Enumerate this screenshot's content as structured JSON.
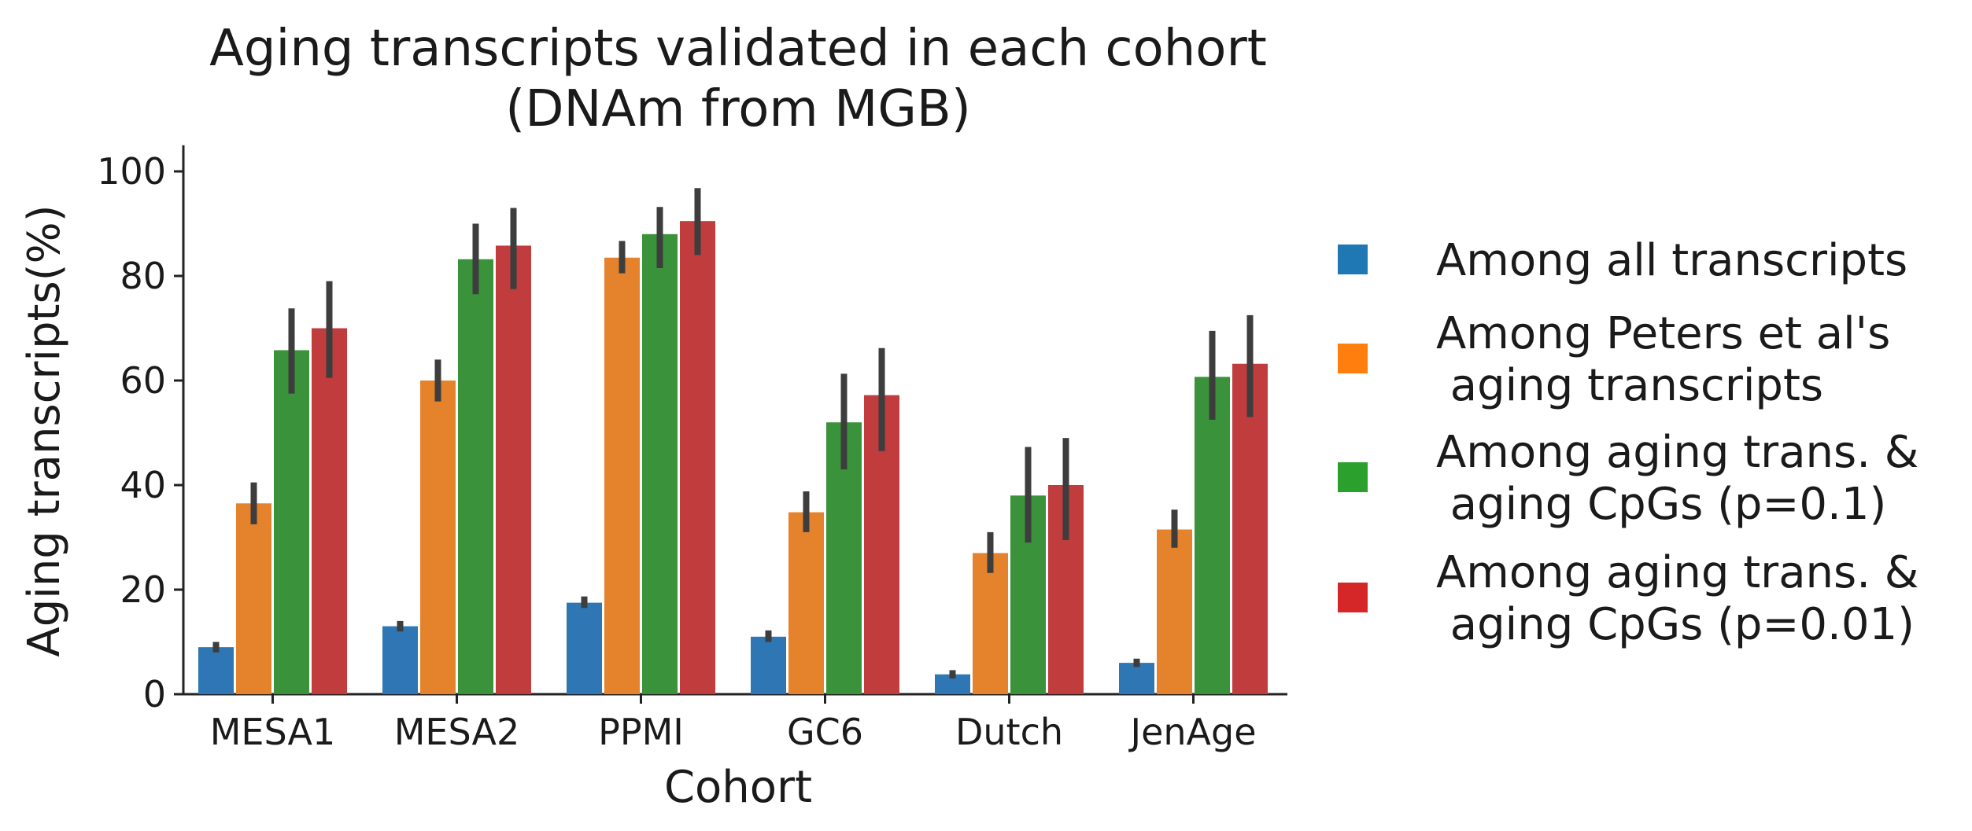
{
  "chart_data": {
    "type": "bar",
    "title": "Aging transcripts validated in each cohort",
    "subtitle": "(DNAm from MGB)",
    "xlabel": "Cohort",
    "ylabel": "Aging transcripts(%)",
    "ylim": [
      0,
      105
    ],
    "yticks": [
      0,
      20,
      40,
      60,
      80,
      100
    ],
    "grid": false,
    "legend_position": "right",
    "categories": [
      "MESA1",
      "MESA2",
      "PPMI",
      "GC6",
      "Dutch",
      "JenAge"
    ],
    "series": [
      {
        "name": "Among all transcripts",
        "legend_lines": [
          "Among all transcripts"
        ],
        "color": "#2e77b4",
        "legend_color": "#1f77b4",
        "values": [
          9,
          13,
          17.5,
          11,
          3.8,
          6
        ],
        "err_low": [
          8,
          12,
          16.5,
          10,
          3,
          5.2
        ],
        "err_high": [
          10,
          14,
          18.7,
          12.2,
          4.6,
          6.8
        ]
      },
      {
        "name": "Among Peters et al's aging transcripts",
        "legend_lines": [
          "Among Peters et al's",
          " aging transcripts"
        ],
        "color": "#e5822c",
        "legend_color": "#ff7f0e",
        "values": [
          36.5,
          60,
          83.5,
          34.8,
          27,
          31.5
        ],
        "err_low": [
          32.5,
          56,
          80.5,
          31,
          23.2,
          28
        ],
        "err_high": [
          40.5,
          64,
          86.7,
          38.8,
          31,
          35.3
        ]
      },
      {
        "name": "Among aging trans. & aging CpGs (p=0.1)",
        "legend_lines": [
          "Among aging trans. &",
          " aging CpGs (p=0.1)"
        ],
        "color": "#3a923a",
        "legend_color": "#2ca02c",
        "values": [
          65.8,
          83.2,
          88,
          52,
          38,
          60.7
        ],
        "err_low": [
          57.5,
          76.5,
          81.5,
          43,
          29,
          52.5
        ],
        "err_high": [
          73.8,
          90,
          93.2,
          61.3,
          47.3,
          69.5
        ]
      },
      {
        "name": "Among aging trans. & aging CpGs (p=0.01)",
        "legend_lines": [
          "Among aging trans. &",
          " aging CpGs (p=0.01)"
        ],
        "color": "#c03c3d",
        "legend_color": "#d62728",
        "values": [
          70,
          85.8,
          90.5,
          57.2,
          40,
          63.2
        ],
        "err_low": [
          60.5,
          77.5,
          84,
          46.5,
          29.5,
          53
        ],
        "err_high": [
          79,
          93,
          96.8,
          66.2,
          49,
          72.5
        ]
      }
    ]
  }
}
